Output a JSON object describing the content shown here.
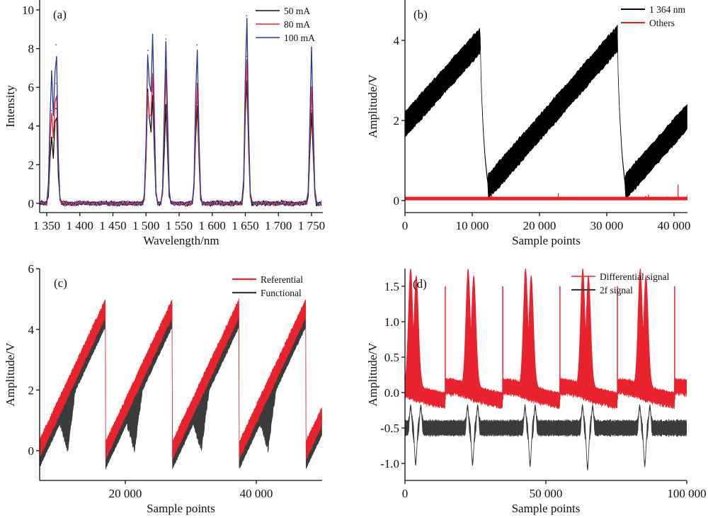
{
  "chart_data": [
    {
      "id": "a",
      "type": "line",
      "panel_label": "(a)",
      "xlabel": "Wavelength/nm",
      "ylabel": "Intensity",
      "xlim": [
        1340,
        1765
      ],
      "ylim": [
        -0.5,
        10.3
      ],
      "xticks": [
        1350,
        1400,
        1450,
        1500,
        1550,
        1600,
        1650,
        1700,
        1750
      ],
      "xtick_labels": [
        "1 350",
        "1 400",
        "1 450",
        "1 500",
        "1 550",
        "1 600",
        "1 650",
        "1 700",
        "1 750"
      ],
      "yticks": [
        0,
        2,
        4,
        6,
        8,
        10
      ],
      "ytick_labels": [
        "0",
        "2",
        "4",
        "6",
        "8",
        "10"
      ],
      "legend_position": "top-right",
      "peaks_nm": [
        1357,
        1364,
        1503,
        1510,
        1530,
        1577,
        1652,
        1750
      ],
      "series": [
        {
          "name": "50 mA",
          "color": "#111111",
          "peak_values": [
            3.4,
            4.9,
            5.9,
            5.4,
            5.0,
            5.2,
            6.6,
            4.8
          ]
        },
        {
          "name": "80 mA",
          "color": "#e8232d",
          "peak_values": [
            4.8,
            6.2,
            5.9,
            6.7,
            6.9,
            6.2,
            7.6,
            6.0
          ]
        },
        {
          "name": "100 mA",
          "color": "#2b3a99",
          "peak_values": [
            6.8,
            8.2,
            7.9,
            8.7,
            8.5,
            8.2,
            9.7,
            8.0
          ]
        }
      ]
    },
    {
      "id": "b",
      "type": "line",
      "panel_label": "(b)",
      "xlabel": "Sample points",
      "ylabel": "Amplitude/V",
      "xlim": [
        0,
        42000
      ],
      "ylim": [
        -0.3,
        5.0
      ],
      "xticks": [
        0,
        10000,
        20000,
        30000,
        40000
      ],
      "xtick_labels": [
        "0",
        "10 000",
        "20 000",
        "30 000",
        "40 000"
      ],
      "yticks": [
        0,
        2,
        4
      ],
      "ytick_labels": [
        "0",
        "2",
        "4"
      ],
      "legend_position": "top-right",
      "series": [
        {
          "name": "1 364 nm",
          "color": "#000000",
          "description": "sawtooth ramp 1.9 to 4.1 V, drop at ~11 500 and ~32 000, min ~0.3 V, noise band ~0.6 V",
          "ramp_periods": [
            [
              0,
              11200,
              1.9,
              4.0
            ],
            [
              12400,
              31600,
              0.35,
              4.05
            ],
            [
              32800,
              42000,
              0.35,
              2.1
            ]
          ]
        },
        {
          "name": "Others",
          "color": "#e8232d",
          "description": "flat ~0.05 V with sparse spikes",
          "level": 0.05,
          "spikes": [
            [
              0,
              0.2
            ],
            [
              12900,
              0.18
            ],
            [
              22800,
              0.18
            ],
            [
              35800,
              0.12
            ],
            [
              36200,
              0.15
            ],
            [
              39100,
              0.1
            ],
            [
              40600,
              0.4
            ],
            [
              42000,
              0.15
            ]
          ]
        }
      ]
    },
    {
      "id": "c",
      "type": "line",
      "panel_label": "(c)",
      "xlabel": "Sample points",
      "ylabel": "Amplitude/V",
      "xlim": [
        6800,
        50000
      ],
      "ylim": [
        -1.0,
        6.0
      ],
      "xticks": [
        20000,
        40000
      ],
      "xtick_labels": [
        "20 000",
        "40 000"
      ],
      "yticks": [
        0,
        2,
        4,
        6
      ],
      "ytick_labels": [
        "0",
        "2",
        "4",
        "6"
      ],
      "legend_position": "top-right",
      "series": [
        {
          "name": "Referential",
          "color": "#e8232d",
          "description": "sawtooth 0 to 4.7 V, period ~10 200 samples",
          "cycle_starts": [
            6800,
            17000,
            27200,
            37400,
            47600
          ],
          "ramp_range": [
            0.0,
            4.7
          ]
        },
        {
          "name": "Functional",
          "color": "#3a3c3c",
          "description": "sawtooth similar to Referential with absorption dips mid-ramp",
          "dip_centers": [
            11200,
            21400,
            31600,
            41800
          ]
        }
      ]
    },
    {
      "id": "d",
      "type": "line",
      "panel_label": "(d)",
      "xlabel": "Sample points",
      "ylabel": "Amplitude/V",
      "xlim": [
        0,
        100000
      ],
      "ylim": [
        -1.25,
        1.75
      ],
      "xticks": [
        0,
        50000,
        100000
      ],
      "xtick_labels": [
        "0",
        "50 000",
        "100 000"
      ],
      "yticks": [
        1.5,
        1.0,
        0.5,
        0.0,
        -0.5,
        -1.0
      ],
      "ytick_labels": [
        "1.5",
        "1.0",
        "0.5",
        "0.0",
        "-0.5",
        "-1.0"
      ],
      "legend_position": "top-right",
      "series": [
        {
          "name": "Differential signal",
          "color": "#e8232d",
          "baseline": 0.05,
          "double_peak_centers": [
            3000,
            23400,
            43800,
            64100,
            84500
          ],
          "peak_values": [
            1.55,
            1.45
          ],
          "spike_positions": [
            14300,
            34700,
            55000,
            75400,
            95700
          ],
          "spike_value": 1.5
        },
        {
          "name": "2f signal",
          "color": "#3a3c3c",
          "baseline": -0.5,
          "dip_centers": [
            3800,
            24000,
            44400,
            64800,
            85100
          ],
          "dip_values": [
            -1.0,
            -1.0,
            -1.02,
            -1.07,
            -1.02
          ],
          "side_lobe_value": -0.2
        }
      ]
    }
  ]
}
